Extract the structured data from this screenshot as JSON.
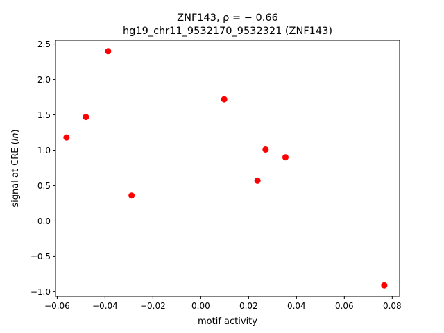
{
  "chart_data": {
    "type": "scatter",
    "title_line1": "ZNF143, ρ = − 0.66",
    "title_line2": "hg19_chr11_9532170_9532321 (ZNF143)",
    "xlabel": "motif activity",
    "ylabel": "signal at CRE (ln)",
    "xlim": [
      -0.0607,
      0.0831
    ],
    "ylim": [
      -1.065,
      2.555
    ],
    "x_ticks": [
      -0.06,
      -0.04,
      -0.02,
      0.0,
      0.02,
      0.04,
      0.06,
      0.08
    ],
    "x_tick_labels": [
      "−0.06",
      "−0.04",
      "−0.02",
      "0.00",
      "0.02",
      "0.04",
      "0.06",
      "0.08"
    ],
    "y_ticks": [
      -1.0,
      -0.5,
      0.0,
      0.5,
      1.0,
      1.5,
      2.0,
      2.5
    ],
    "y_tick_labels": [
      "−1.0",
      "−0.5",
      "0.0",
      "0.5",
      "1.0",
      "1.5",
      "2.0",
      "2.5"
    ],
    "marker_color": "#ff0000",
    "grid": false,
    "points": [
      {
        "x": -0.0561,
        "y": 1.18
      },
      {
        "x": -0.048,
        "y": 1.47
      },
      {
        "x": -0.0387,
        "y": 2.4
      },
      {
        "x": -0.0289,
        "y": 0.36
      },
      {
        "x": 0.0098,
        "y": 1.72
      },
      {
        "x": 0.0237,
        "y": 0.57
      },
      {
        "x": 0.0271,
        "y": 1.01
      },
      {
        "x": 0.0354,
        "y": 0.9
      },
      {
        "x": 0.0767,
        "y": -0.91
      }
    ]
  }
}
